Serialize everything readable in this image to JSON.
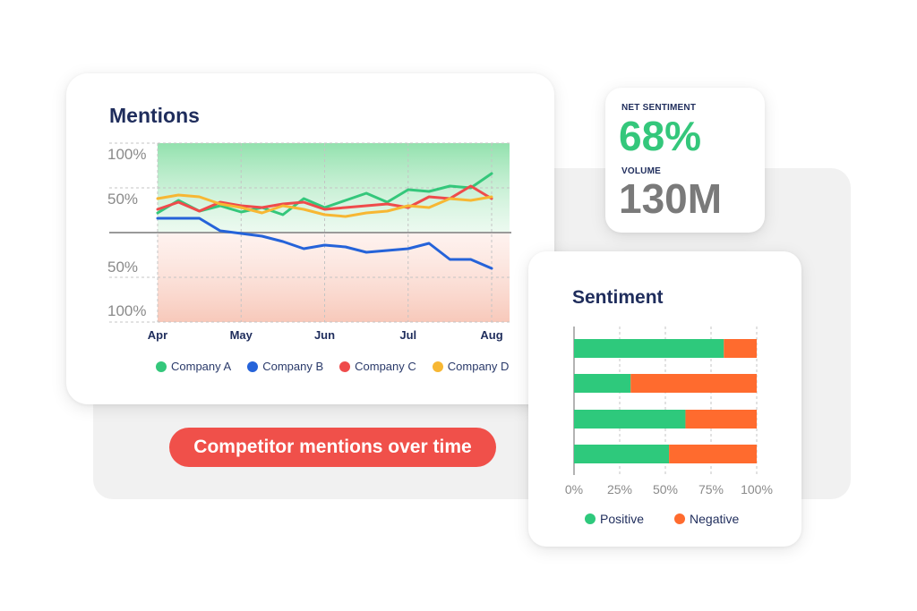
{
  "mentions": {
    "title": "Mentions"
  },
  "kpis": {
    "net_sentiment_label": "NET SENTIMENT",
    "net_sentiment_value": "68%",
    "volume_label": "VOLUME",
    "volume_value": "130M"
  },
  "sentiment": {
    "title": "Sentiment"
  },
  "caption": "Competitor mentions over time",
  "colors": {
    "company_a": "#34c77b",
    "company_b": "#2563d9",
    "company_c": "#ef4b4b",
    "company_d": "#f7b733",
    "positive": "#2ec97c",
    "negative": "#ff6b2e",
    "title": "#1f2d5c",
    "caption_bg": "#f0504a"
  },
  "chart_data": [
    {
      "type": "line",
      "title": "Mentions",
      "x": [
        "Apr",
        "May",
        "Jun",
        "Jul",
        "Aug"
      ],
      "y_tick_labels": [
        "100%",
        "50%",
        "50%",
        "100%"
      ],
      "ylim": [
        -100,
        100
      ],
      "grid": true,
      "legend_placement": "bottom",
      "series": [
        {
          "name": "Company A",
          "color": "#34c77b",
          "points": [
            [
              0,
              22
            ],
            [
              0.25,
              36
            ],
            [
              0.5,
              24
            ],
            [
              0.75,
              30
            ],
            [
              1,
              23
            ],
            [
              1.25,
              28
            ],
            [
              1.5,
              20
            ],
            [
              1.75,
              38
            ],
            [
              2,
              28
            ],
            [
              2.25,
              36
            ],
            [
              2.5,
              44
            ],
            [
              2.75,
              34
            ],
            [
              3,
              48
            ],
            [
              3.25,
              46
            ],
            [
              3.5,
              52
            ],
            [
              3.75,
              50
            ],
            [
              4,
              66
            ]
          ]
        },
        {
          "name": "Company B",
          "color": "#2563d9",
          "points": [
            [
              0,
              16
            ],
            [
              0.5,
              16
            ],
            [
              0.75,
              2
            ],
            [
              1.25,
              -4
            ],
            [
              1.5,
              -10
            ],
            [
              1.75,
              -18
            ],
            [
              2,
              -14
            ],
            [
              2.25,
              -16
            ],
            [
              2.5,
              -22
            ],
            [
              3,
              -18
            ],
            [
              3.25,
              -12
            ],
            [
              3.5,
              -30
            ],
            [
              3.75,
              -30
            ],
            [
              4,
              -40
            ]
          ]
        },
        {
          "name": "Company C",
          "color": "#ef4b4b",
          "points": [
            [
              0,
              26
            ],
            [
              0.25,
              34
            ],
            [
              0.5,
              24
            ],
            [
              0.75,
              34
            ],
            [
              1,
              30
            ],
            [
              1.25,
              28
            ],
            [
              1.5,
              32
            ],
            [
              1.75,
              34
            ],
            [
              2,
              26
            ],
            [
              2.25,
              28
            ],
            [
              2.5,
              30
            ],
            [
              2.75,
              32
            ],
            [
              3,
              28
            ],
            [
              3.25,
              40
            ],
            [
              3.5,
              38
            ],
            [
              3.75,
              52
            ],
            [
              4,
              38
            ]
          ]
        },
        {
          "name": "Company D",
          "color": "#f7b733",
          "points": [
            [
              0,
              38
            ],
            [
              0.25,
              42
            ],
            [
              0.5,
              40
            ],
            [
              0.75,
              32
            ],
            [
              1,
              28
            ],
            [
              1.25,
              22
            ],
            [
              1.5,
              30
            ],
            [
              1.75,
              26
            ],
            [
              2,
              20
            ],
            [
              2.25,
              18
            ],
            [
              2.5,
              22
            ],
            [
              2.75,
              24
            ],
            [
              3,
              30
            ],
            [
              3.25,
              28
            ],
            [
              3.5,
              38
            ],
            [
              3.75,
              36
            ],
            [
              4,
              40
            ]
          ]
        }
      ]
    },
    {
      "type": "bar",
      "orientation": "horizontal",
      "stacked": true,
      "title": "Sentiment",
      "x_tick_labels": [
        "0%",
        "25%",
        "50%",
        "75%",
        "100%"
      ],
      "xlim": [
        0,
        100
      ],
      "grid": true,
      "legend_placement": "bottom",
      "categories": [
        "",
        "",
        "",
        ""
      ],
      "series": [
        {
          "name": "Positive",
          "color": "#2ec97c",
          "values": [
            82,
            31,
            61,
            52
          ]
        },
        {
          "name": "Negative",
          "color": "#ff6b2e",
          "values": [
            18,
            69,
            39,
            48
          ]
        }
      ]
    }
  ]
}
